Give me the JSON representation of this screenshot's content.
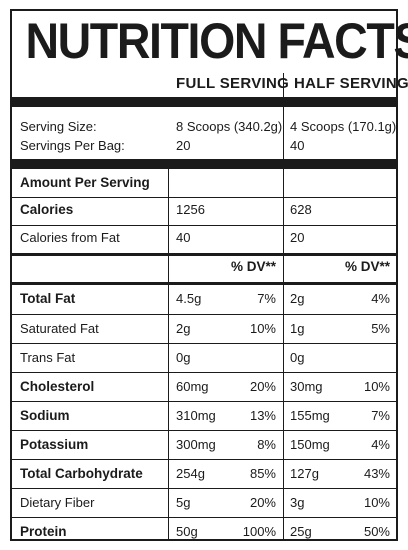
{
  "title": "NUTRITION FACTS",
  "columns": {
    "full": "FULL SERVING",
    "half": "HALF SERVING"
  },
  "serving": {
    "size_label": "Serving Size:",
    "per_bag_label": "Servings Per Bag:",
    "full_size": "8 Scoops (340.2g)",
    "full_per_bag": "20",
    "half_size": "4 Scoops (170.1g)",
    "half_per_bag": "40"
  },
  "amount_header": "Amount Per Serving",
  "calories": {
    "label": "Calories",
    "full": "1256",
    "half": "628"
  },
  "calories_fat": {
    "label": "Calories from Fat",
    "full": "40",
    "half": "20"
  },
  "dv_header": {
    "full": "% DV**",
    "half": "% DV**"
  },
  "nutrients": [
    {
      "label": "Total Fat",
      "bold": true,
      "full_amt": "4.5g",
      "full_dv": "7%",
      "half_amt": "2g",
      "half_dv": "4%"
    },
    {
      "label": "Saturated Fat",
      "bold": false,
      "full_amt": "2g",
      "full_dv": "10%",
      "half_amt": "1g",
      "half_dv": "5%"
    },
    {
      "label": "Trans Fat",
      "bold": false,
      "full_amt": "0g",
      "full_dv": "",
      "half_amt": "0g",
      "half_dv": ""
    },
    {
      "label": "Cholesterol",
      "bold": true,
      "full_amt": "60mg",
      "full_dv": "20%",
      "half_amt": "30mg",
      "half_dv": "10%"
    },
    {
      "label": "Sodium",
      "bold": true,
      "full_amt": "310mg",
      "full_dv": "13%",
      "half_amt": "155mg",
      "half_dv": "7%"
    },
    {
      "label": "Potassium",
      "bold": true,
      "full_amt": "300mg",
      "full_dv": "8%",
      "half_amt": "150mg",
      "half_dv": "4%"
    },
    {
      "label": "Total Carbohydrate",
      "bold": true,
      "full_amt": "254g",
      "full_dv": "85%",
      "half_amt": "127g",
      "half_dv": "43%"
    },
    {
      "label": "Dietary Fiber",
      "bold": false,
      "full_amt": "5g",
      "full_dv": "20%",
      "half_amt": "3g",
      "half_dv": "10%"
    },
    {
      "label": "Protein",
      "bold": true,
      "full_amt": "50g",
      "full_dv": "100%",
      "half_amt": "25g",
      "half_dv": "50%"
    }
  ]
}
